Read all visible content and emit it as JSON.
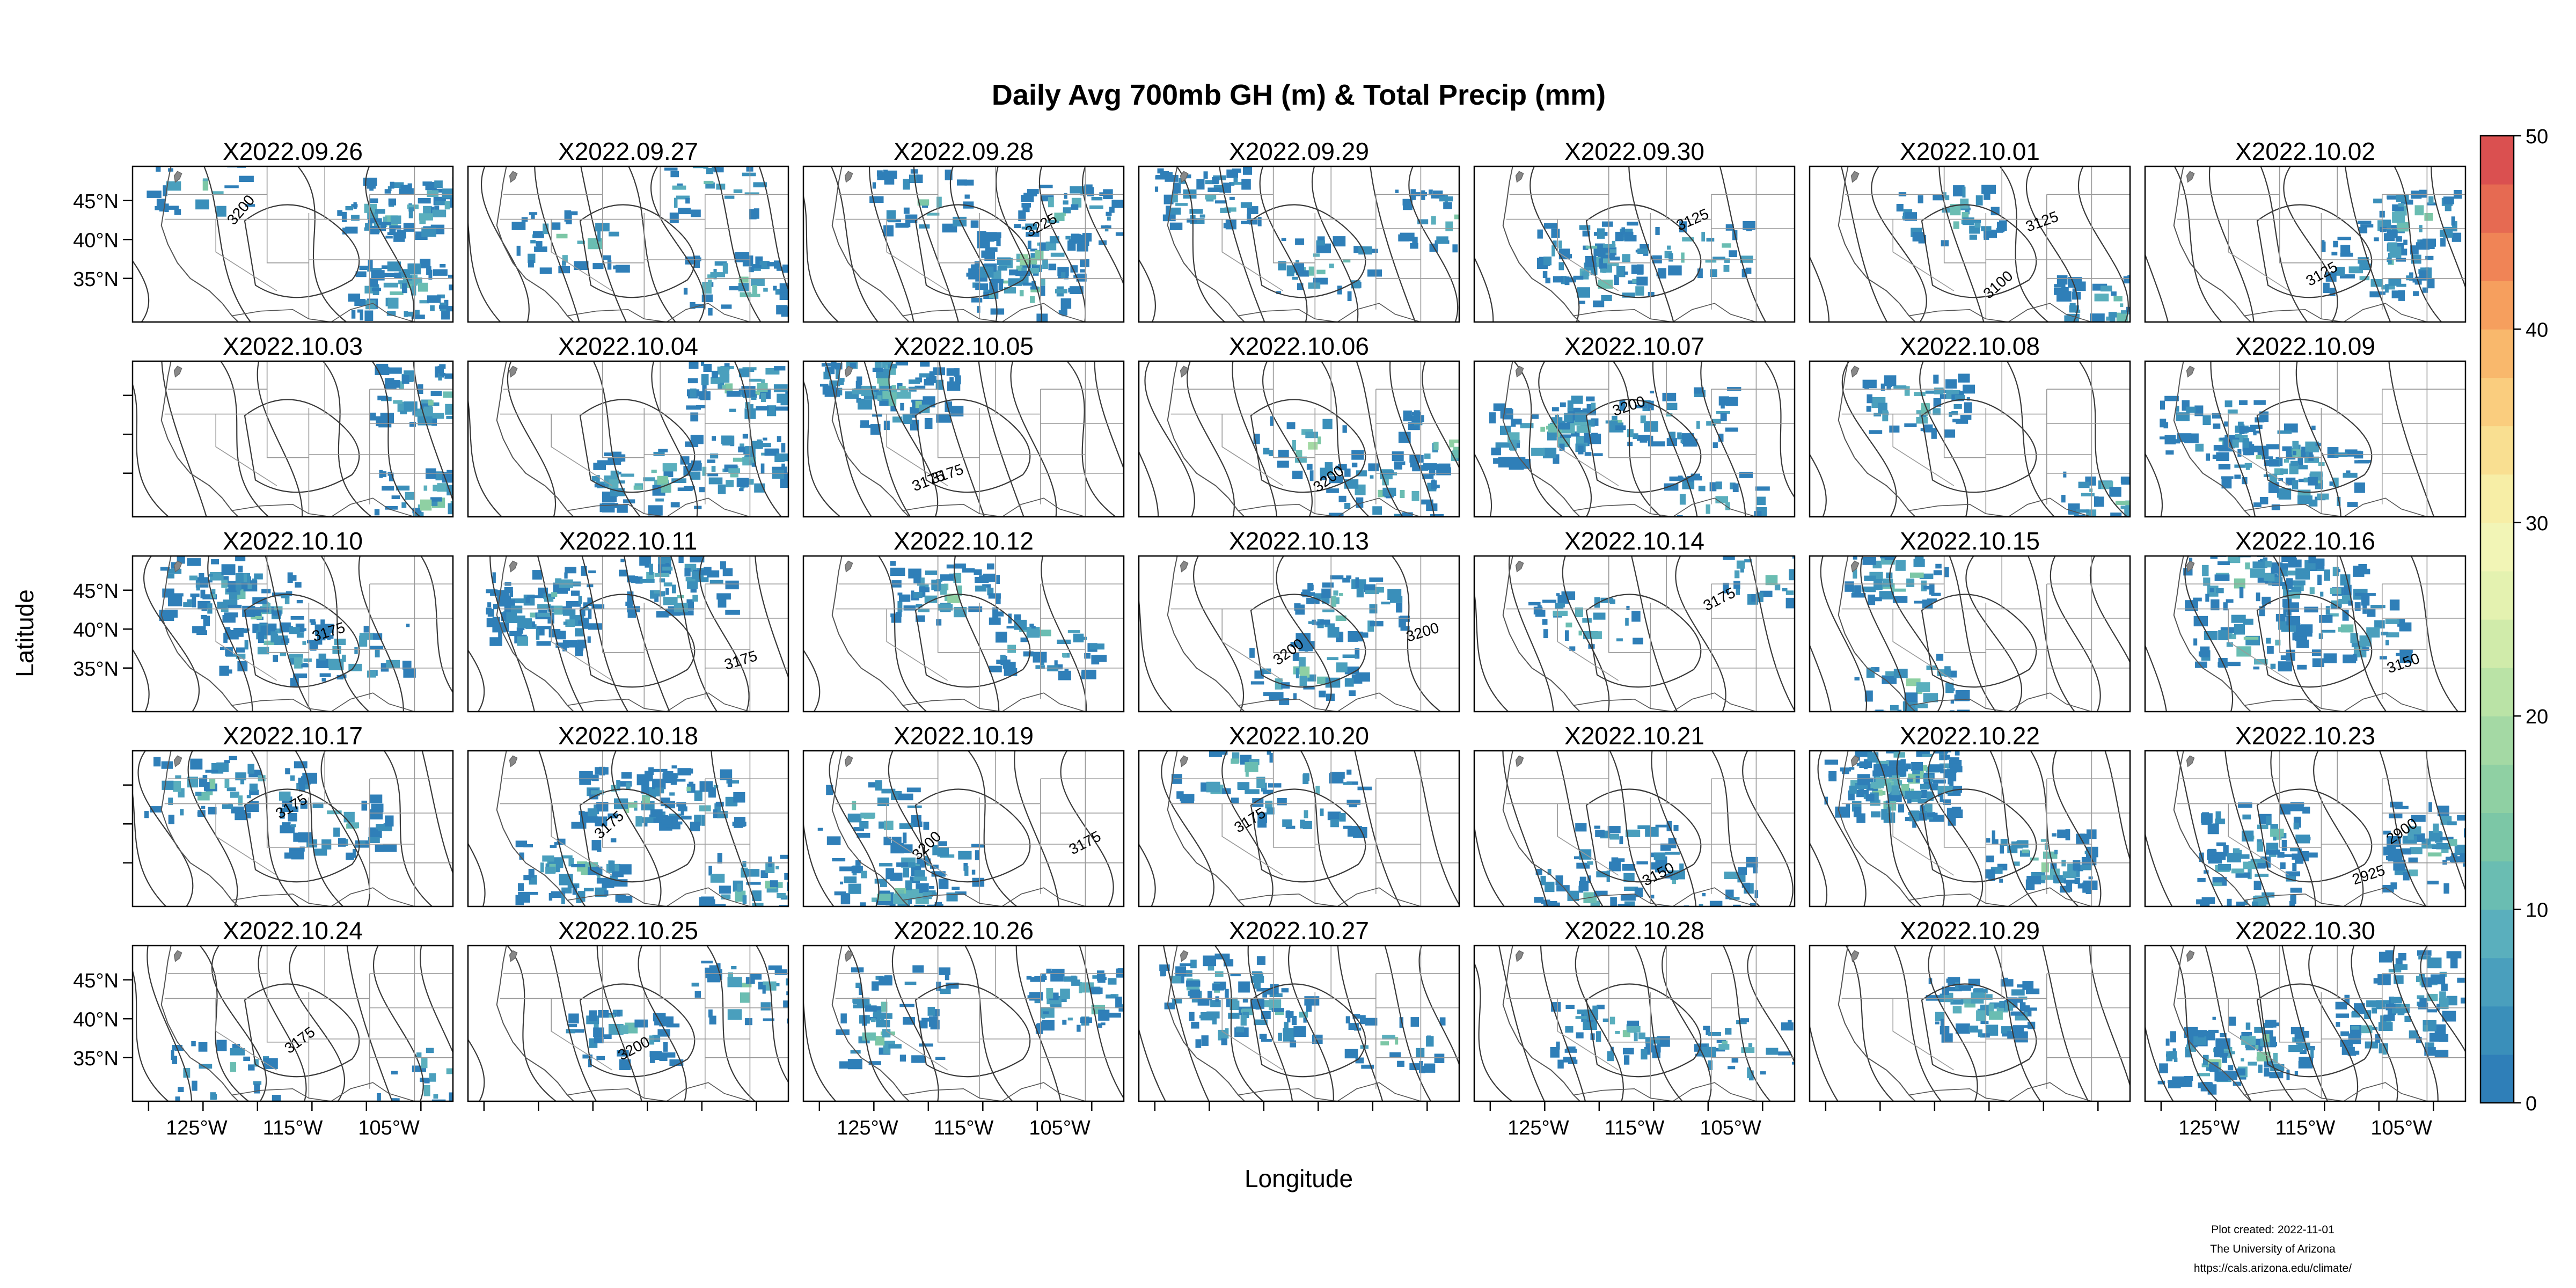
{
  "title": "Daily Avg 700mb GH (m) & Total Precip (mm)",
  "x_axis_label": "Longitude",
  "y_axis_label": "Latitude",
  "lon_ticks": [
    "125°W",
    "115°W",
    "105°W"
  ],
  "lat_ticks": [
    "45°N",
    "40°N",
    "35°N"
  ],
  "colorbar": {
    "min": 0,
    "max": 50,
    "ticks": [
      "0",
      "10",
      "20",
      "30",
      "40",
      "50"
    ],
    "colors": [
      "#2f7fb8",
      "#3a8fba",
      "#4a9fbd",
      "#5aafbd",
      "#6abdb2",
      "#7cc7a6",
      "#8fd0a3",
      "#a4d9a4",
      "#bae3a6",
      "#d0ebaa",
      "#e4f2b0",
      "#f2f5b6",
      "#f7eea6",
      "#f9df91",
      "#facd7e",
      "#f9b86c",
      "#f69f5e",
      "#f08456",
      "#e66a52",
      "#da5050"
    ]
  },
  "panels": [
    {
      "date": "X2022.09.26",
      "labels": [
        "3200"
      ]
    },
    {
      "date": "X2022.09.27",
      "labels": []
    },
    {
      "date": "X2022.09.28",
      "labels": [
        "3225"
      ]
    },
    {
      "date": "X2022.09.29",
      "labels": []
    },
    {
      "date": "X2022.09.30",
      "labels": [
        "3125"
      ]
    },
    {
      "date": "X2022.10.01",
      "labels": [
        "3100",
        "3125"
      ]
    },
    {
      "date": "X2022.10.02",
      "labels": [
        "3125"
      ]
    },
    {
      "date": "X2022.10.03",
      "labels": []
    },
    {
      "date": "X2022.10.04",
      "labels": []
    },
    {
      "date": "X2022.10.05",
      "labels": [
        "3175",
        "3175"
      ]
    },
    {
      "date": "X2022.10.06",
      "labels": [
        "3200"
      ]
    },
    {
      "date": "X2022.10.07",
      "labels": [
        "3200"
      ]
    },
    {
      "date": "X2022.10.08",
      "labels": []
    },
    {
      "date": "X2022.10.09",
      "labels": []
    },
    {
      "date": "X2022.10.10",
      "labels": [
        "3175"
      ]
    },
    {
      "date": "X2022.10.11",
      "labels": [
        "3175"
      ]
    },
    {
      "date": "X2022.10.12",
      "labels": []
    },
    {
      "date": "X2022.10.13",
      "labels": [
        "3200",
        "3200"
      ]
    },
    {
      "date": "X2022.10.14",
      "labels": [
        "3175"
      ]
    },
    {
      "date": "X2022.10.15",
      "labels": []
    },
    {
      "date": "X2022.10.16",
      "labels": [
        "3150"
      ]
    },
    {
      "date": "X2022.10.17",
      "labels": [
        "3175"
      ]
    },
    {
      "date": "X2022.10.18",
      "labels": [
        "3175"
      ]
    },
    {
      "date": "X2022.10.19",
      "labels": [
        "3200",
        "3175"
      ]
    },
    {
      "date": "X2022.10.20",
      "labels": [
        "3175"
      ]
    },
    {
      "date": "X2022.10.21",
      "labels": [
        "3150"
      ]
    },
    {
      "date": "X2022.10.22",
      "labels": []
    },
    {
      "date": "X2022.10.23",
      "labels": [
        "2900",
        "2925"
      ]
    },
    {
      "date": "X2022.10.24",
      "labels": [
        "3175"
      ]
    },
    {
      "date": "X2022.10.25",
      "labels": [
        "3200"
      ]
    },
    {
      "date": "X2022.10.26",
      "labels": []
    },
    {
      "date": "X2022.10.27",
      "labels": []
    },
    {
      "date": "X2022.10.28",
      "labels": []
    },
    {
      "date": "X2022.10.29",
      "labels": []
    },
    {
      "date": "X2022.10.30",
      "labels": []
    }
  ],
  "footer": {
    "line1": "Plot created: 2022-11-01",
    "line2": "The University of Arizona",
    "line3": "https://cals.arizona.edu/climate/"
  }
}
